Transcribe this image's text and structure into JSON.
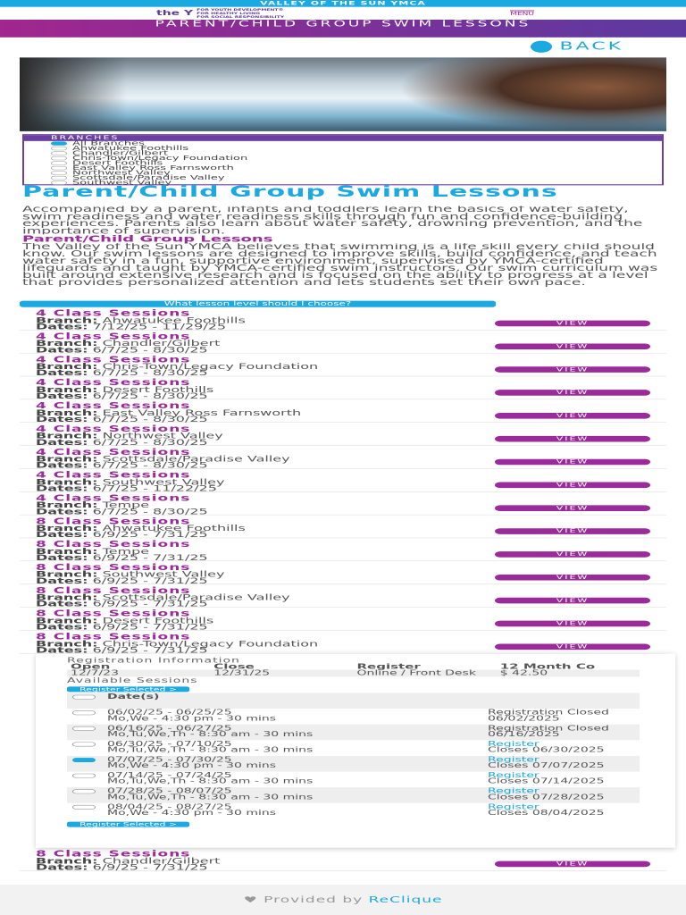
{
  "top_bar": "VALLEY OF THE SUN YMCA",
  "header": {
    "logo": "the Y",
    "tagline": [
      "FOR YOUTH DEVELOPMENT®",
      "FOR HEALTHY LIVING",
      "FOR SOCIAL RESPONSIBILITY"
    ],
    "menu": "MENU"
  },
  "banner_title": "PARENT/CHILD GROUP SWIM LESSONS",
  "back": "BACK",
  "branches": {
    "label": "BRANCHES",
    "items": [
      {
        "name": "All Branches",
        "checked": true
      },
      {
        "name": "Ahwatukee Foothills",
        "checked": false
      },
      {
        "name": "Chandler/Gilbert",
        "checked": false
      },
      {
        "name": "Chris-Town/Legacy Foundation",
        "checked": false
      },
      {
        "name": "Desert Foothills",
        "checked": false
      },
      {
        "name": "East Valley Ross Farnsworth",
        "checked": false
      },
      {
        "name": "Northwest Valley",
        "checked": false
      },
      {
        "name": "Scottsdale/Paradise Valley",
        "checked": false
      },
      {
        "name": "Southwest Valley",
        "checked": false
      }
    ]
  },
  "heading": "Parent/Child Group Swim Lessons",
  "intro": "Accompanied by a parent, infants and toddlers learn the basics of water safety, swim readiness and water readiness skills through fun and confidence-building experiences. Parents also learn about water safety, drowning prevention, and the importance of supervision.",
  "subheading": "Parent/Child Group Lessons",
  "body": "The Valley of the Sun YMCA believes that swimming is a life skill every child should know. Our swim lessons are designed to improve skills, build confidence, and teach water safety in a fun, supportive environment, supervised by YMCA-certified lifeguards and taught by YMCA-certified swim instructors. Our swim curriculum was built around extensive research and is focused on the ability to progress at a level that provides personalized attention and lets students set their own pace.",
  "level_button": "What lesson level should I choose?",
  "labels": {
    "branch": "Branch:",
    "dates": "Dates:",
    "view": "VIEW"
  },
  "sessions": [
    {
      "title": "4 Class Sessions",
      "branch": "Ahwatukee Foothills",
      "dates": "7/12/25 - 11/29/25"
    },
    {
      "title": "4 Class Sessions",
      "branch": "Chandler/Gilbert",
      "dates": "6/7/25 - 8/30/25"
    },
    {
      "title": "4 Class Sessions",
      "branch": "Chris-Town/Legacy Foundation",
      "dates": "6/7/25 - 8/30/25"
    },
    {
      "title": "4 Class Sessions",
      "branch": "Desert Foothills",
      "dates": "6/7/25 - 8/30/25"
    },
    {
      "title": "4 Class Sessions",
      "branch": "East Valley Ross Farnsworth",
      "dates": "6/7/25 - 8/30/25"
    },
    {
      "title": "4 Class Sessions",
      "branch": "Northwest Valley",
      "dates": "6/7/25 - 8/30/25"
    },
    {
      "title": "4 Class Sessions",
      "branch": "Scottsdale/Paradise Valley",
      "dates": "6/7/25 - 8/30/25"
    },
    {
      "title": "4 Class Sessions",
      "branch": "Southwest Valley",
      "dates": "6/7/25 - 11/22/25"
    },
    {
      "title": "4 Class Sessions",
      "branch": "Tempe",
      "dates": "6/7/25 - 8/30/25"
    },
    {
      "title": "8 Class Sessions",
      "branch": "Ahwatukee Foothills",
      "dates": "6/9/25 - 7/31/25"
    },
    {
      "title": "8 Class Sessions",
      "branch": "Tempe",
      "dates": "6/9/25 - 7/31/25"
    },
    {
      "title": "8 Class Sessions",
      "branch": "Southwest Valley",
      "dates": "6/9/25 - 7/31/25"
    },
    {
      "title": "8 Class Sessions",
      "branch": "Scottsdale/Paradise Valley",
      "dates": "6/9/25 - 7/31/25"
    },
    {
      "title": "8 Class Sessions",
      "branch": "Desert Foothills",
      "dates": "6/9/25 - 7/31/25"
    },
    {
      "title": "8 Class Sessions",
      "branch": "Chris-Town/Legacy Foundation",
      "dates": "6/9/25 - 7/31/25",
      "registration": {
        "heading": "Registration Information",
        "columns": [
          "Open",
          "Close",
          "Register",
          "12 Month Co"
        ],
        "row": [
          "12/7/23",
          "12/31/25",
          "Online / Front Desk",
          "$ 42.50"
        ],
        "available": "Available Sessions",
        "register_selected": "Register Selected >",
        "date_header": "Date(s)",
        "slots": [
          {
            "dates": "06/02/25 - 06/25/25",
            "schedule": "Mo,We - 4:30 pm - 30 mins",
            "status": "Registration Closed",
            "closes": "06/02/2025",
            "selected": false
          },
          {
            "dates": "06/16/25 - 06/27/25",
            "schedule": "Mo,Tu,We,Th - 8:30 am - 30 mins",
            "status": "Registration Closed",
            "closes": "06/16/2025",
            "selected": false
          },
          {
            "dates": "06/30/25 - 07/10/25",
            "schedule": "Mo,Tu,We,Th - 8:30 am - 30 mins",
            "status": "Register",
            "closes": "Closes 06/30/2025",
            "selected": false
          },
          {
            "dates": "07/07/25 - 07/30/25",
            "schedule": "Mo,We - 4:30 pm - 30 mins",
            "status": "Register",
            "closes": "Closes 07/07/2025",
            "selected": true
          },
          {
            "dates": "07/14/25 - 07/24/25",
            "schedule": "Mo,Tu,We,Th - 8:30 am - 30 mins",
            "status": "Register",
            "closes": "Closes 07/14/2025",
            "selected": false
          },
          {
            "dates": "07/28/25 - 08/07/25",
            "schedule": "Mo,Tu,We,Th - 8:30 am - 30 mins",
            "status": "Register",
            "closes": "Closes 07/28/2025",
            "selected": false
          },
          {
            "dates": "08/04/25 - 08/27/25",
            "schedule": "Mo,We - 4:30 pm - 30 mins",
            "status": "Register",
            "closes": "Closes 08/04/2025",
            "selected": false
          }
        ]
      }
    },
    {
      "title": "8 Class Sessions",
      "branch": "Chandler/Gilbert",
      "dates": "6/9/25 - 7/31/25"
    }
  ],
  "footer": {
    "text": "Provided by",
    "link": "ReClique"
  }
}
